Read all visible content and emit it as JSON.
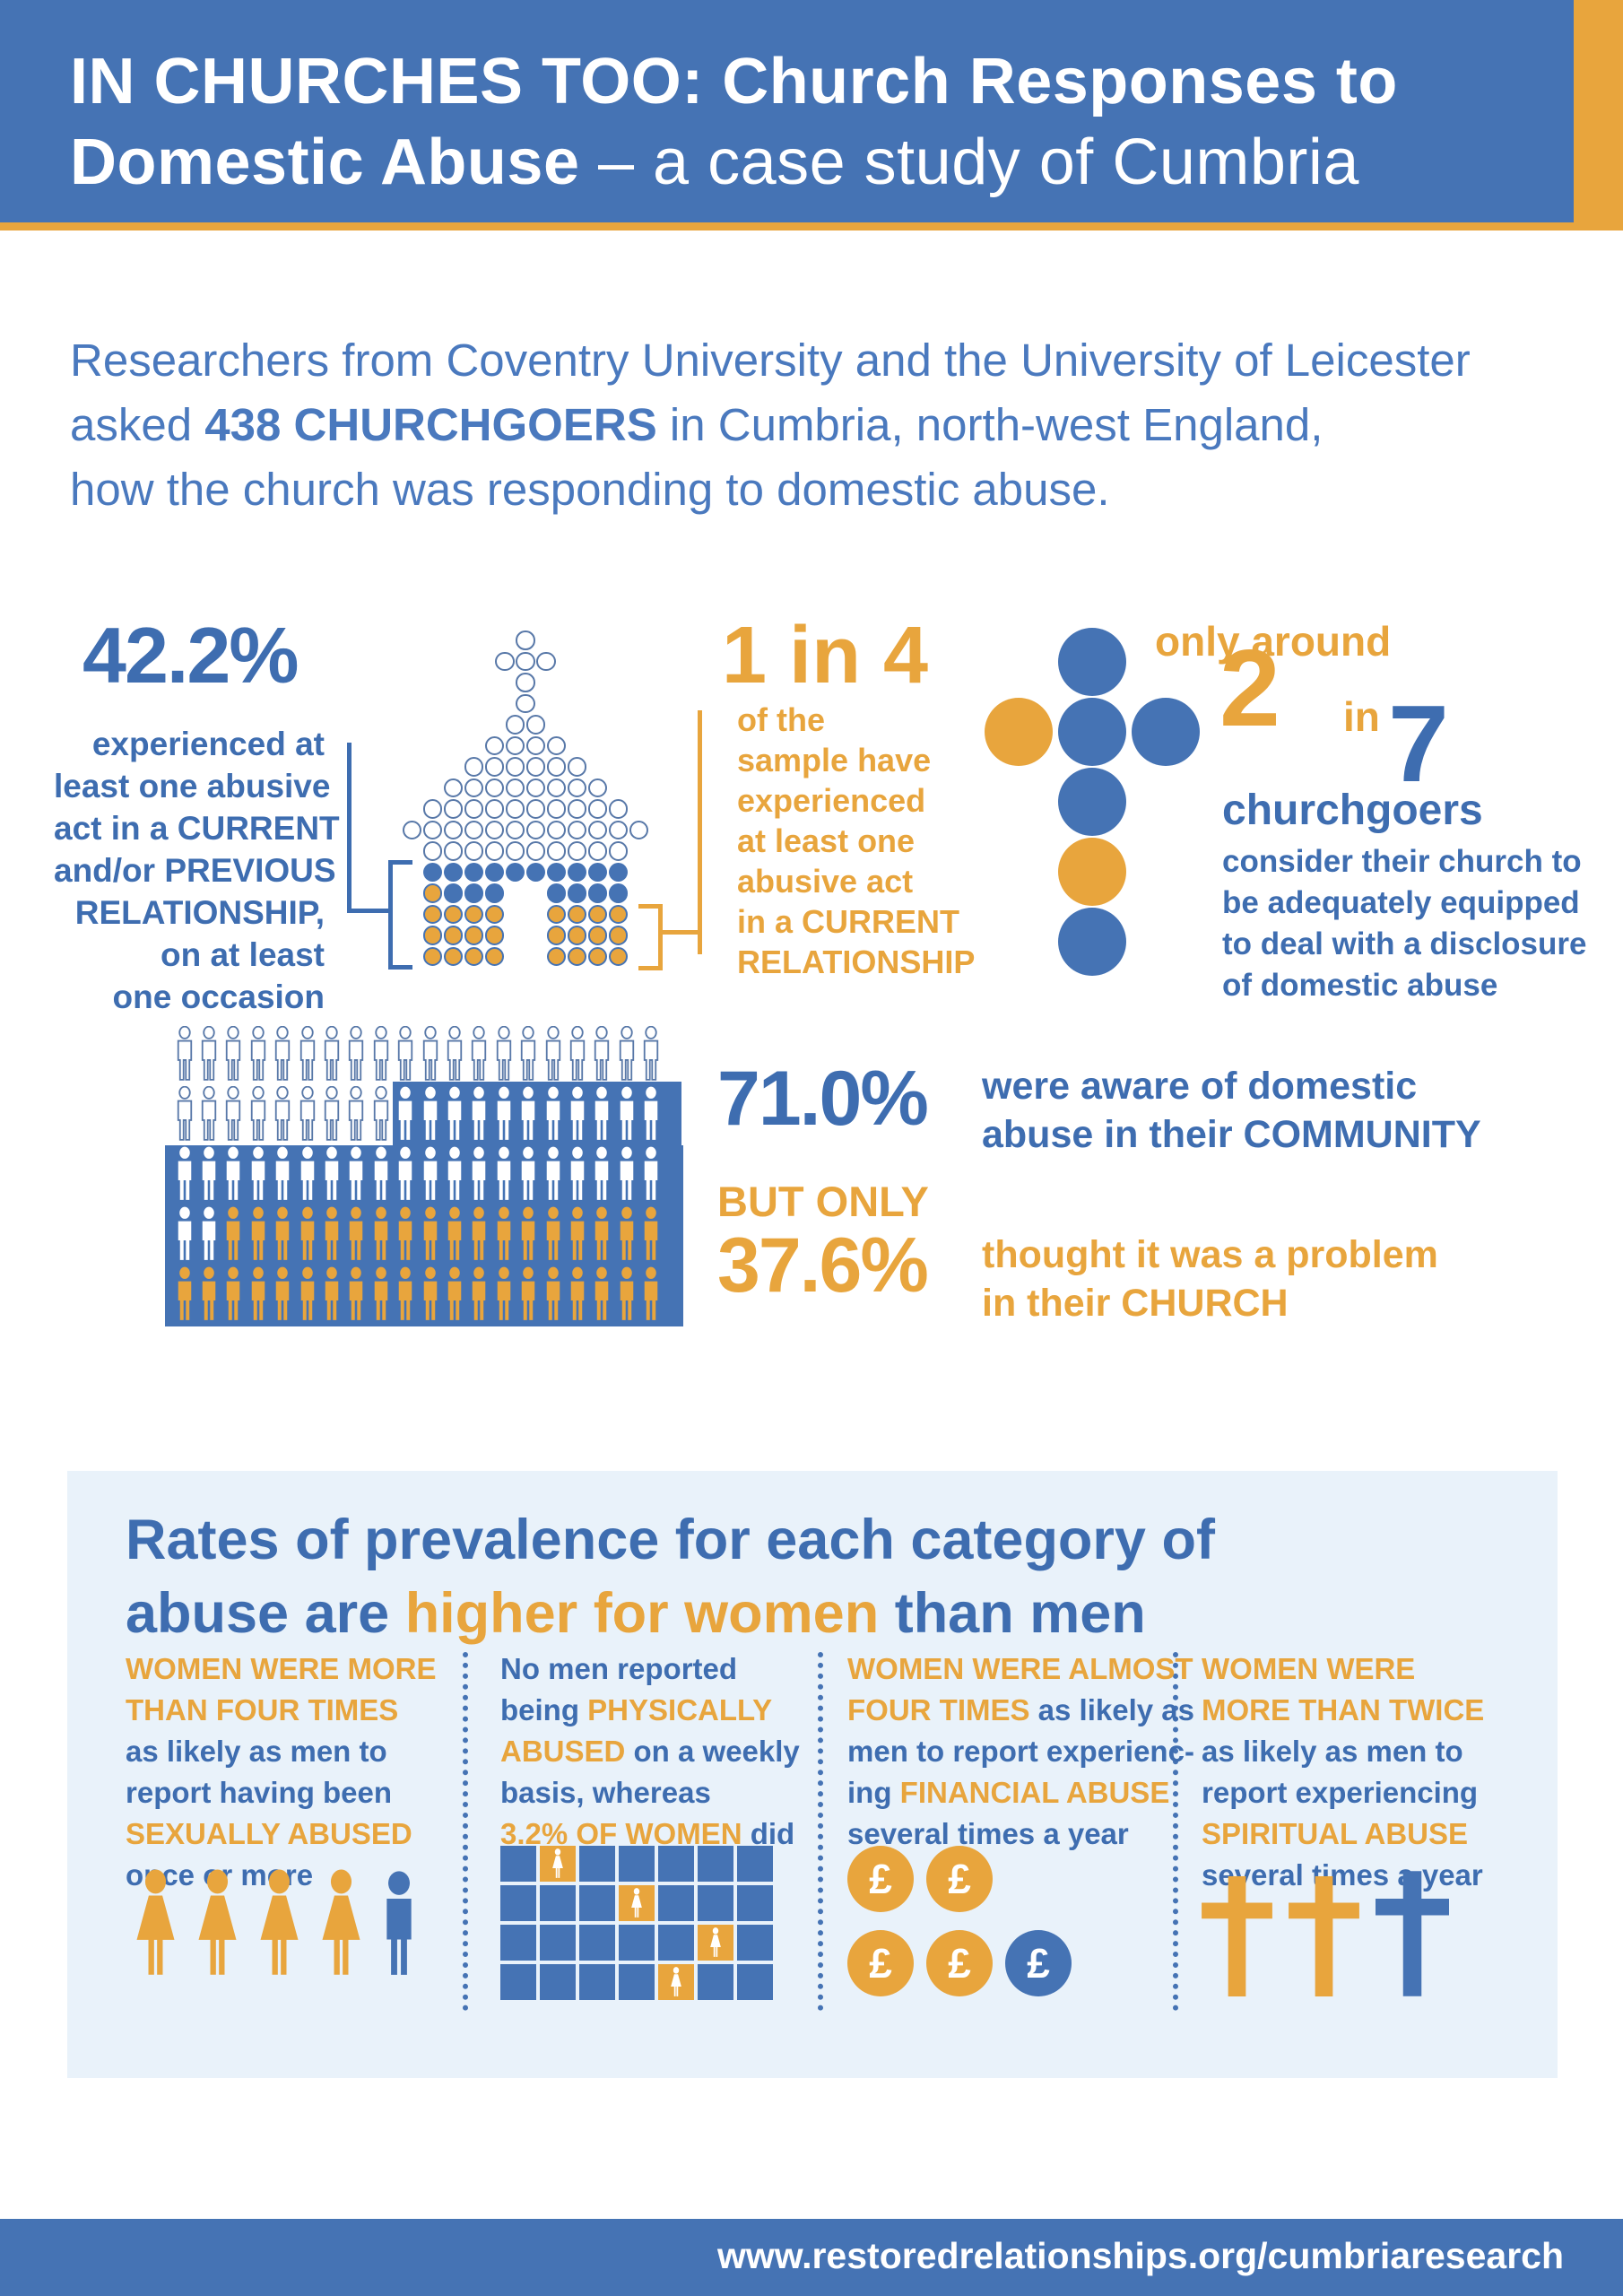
{
  "colors": {
    "blue": "#4573B4",
    "deep_blue": "#3E6DB0",
    "text_blue": "#4A79BE",
    "gold": "#E8A53D",
    "panel_bg": "#E9F2FA",
    "outline": "#5878A8",
    "white": "#FFFFFF"
  },
  "header": {
    "line1": [
      {
        "t": "IN CHURCHES TOO: Church Responses to",
        "c": "white",
        "b": true
      }
    ],
    "line2": [
      {
        "t": "Domestic Abuse",
        "c": "white",
        "b": true
      },
      {
        "t": " – a case study of Cumbria",
        "c": "white"
      }
    ]
  },
  "intro": {
    "lines": [
      [
        {
          "t": "Researchers from Coventry University and the University of Leicester"
        }
      ],
      [
        {
          "t": "asked "
        },
        {
          "t": "438 CHURCHGOERS",
          "b": true
        },
        {
          "t": " in Cumbria, north-west England,"
        }
      ],
      [
        {
          "t": "how the church was responding to domestic abuse."
        }
      ]
    ]
  },
  "stat42": {
    "value": "42.2%",
    "desc_lines": [
      "experienced at",
      "least one abusive",
      "act in a CURRENT",
      "and/or PREVIOUS",
      "RELATIONSHIP,",
      "on at least",
      "one occasion"
    ]
  },
  "church": {
    "rows": [
      "o",
      "ooo",
      "o",
      "o",
      "oo",
      "oooo",
      "oooooo",
      "oooooooo",
      "oooooooooo",
      "oooooooooooo",
      "oooooooooo",
      "BBBBBBBBBB",
      "GBBB..BBBB",
      "GGGG..GGGG",
      "GGGG..GGGG",
      "GGGG..GGGG"
    ]
  },
  "stat1in4": {
    "value": "1 in 4",
    "desc_lines": [
      "of the",
      "sample have",
      "experienced",
      "at least one",
      "abusive act",
      "in a CURRENT",
      "RELATIONSHIP"
    ]
  },
  "cross7": {
    "cells": [
      {
        "r": 0,
        "c": 1,
        "color": "blue"
      },
      {
        "r": 1,
        "c": 0,
        "color": "gold"
      },
      {
        "r": 1,
        "c": 1,
        "color": "blue"
      },
      {
        "r": 1,
        "c": 2,
        "color": "blue"
      },
      {
        "r": 2,
        "c": 1,
        "color": "blue"
      },
      {
        "r": 3,
        "c": 1,
        "color": "gold"
      },
      {
        "r": 4,
        "c": 1,
        "color": "blue"
      }
    ]
  },
  "stat2in7": {
    "prefix": "only around",
    "numerator": "2",
    "connector": "in",
    "denominator": "7",
    "label": "churchgoers",
    "desc_lines": [
      "consider their church to",
      "be adequately equipped",
      "to deal with a disclosure",
      "of domestic abuse"
    ]
  },
  "pictogram": {
    "rows": [
      "oooooooooooooooooooo",
      "ooooooooowwwwwwwwwww",
      "wwwwwwwwwwwwwwwwwwww",
      "wwgggggggggggggggggg",
      "gggggggggggggggggggg"
    ]
  },
  "stat71": {
    "value": "71.0%",
    "desc_lines": [
      "were aware of domestic",
      "abuse in their COMMUNITY"
    ],
    "qualifier": "BUT ONLY",
    "value2": "37.6%",
    "desc2_lines": [
      "thought it was a problem",
      "in their CHURCH"
    ]
  },
  "panel": {
    "heading_lines": [
      [
        {
          "t": "Rates of prevalence for each category of",
          "c": "blue"
        }
      ],
      [
        {
          "t": "abuse are ",
          "c": "blue"
        },
        {
          "t": "higher for women",
          "c": "gold"
        },
        {
          "t": " than men",
          "c": "blue"
        }
      ]
    ],
    "columns": [
      {
        "lines": [
          [
            {
              "t": "WOMEN WERE MORE",
              "c": "gold"
            }
          ],
          [
            {
              "t": "THAN FOUR TIMES",
              "c": "gold"
            }
          ],
          [
            {
              "t": "as likely as men to",
              "c": "blue"
            }
          ],
          [
            {
              "t": "report having been",
              "c": "blue"
            }
          ],
          [
            {
              "t": "SEXUALLY ABUSED",
              "c": "gold"
            }
          ],
          [
            {
              "t": "once or more",
              "c": "blue"
            }
          ]
        ],
        "icons": [
          "woman",
          "woman",
          "woman",
          "woman",
          "man"
        ]
      },
      {
        "lines": [
          [
            {
              "t": "No men reported",
              "c": "blue"
            }
          ],
          [
            {
              "t": "being ",
              "c": "blue"
            },
            {
              "t": "PHYSICALLY",
              "c": "gold"
            }
          ],
          [
            {
              "t": "ABUSED",
              "c": "gold"
            },
            {
              "t": " on a weekly",
              "c": "blue"
            }
          ],
          [
            {
              "t": "basis, whereas",
              "c": "blue"
            }
          ],
          [
            {
              "t": "3.2% OF WOMEN",
              "c": "gold"
            },
            {
              "t": " did",
              "c": "blue"
            }
          ]
        ],
        "grid_rows": [
          "bgbbbbb",
          "bbbgbbb",
          "bbbbbgb",
          "bbbbgbb"
        ]
      },
      {
        "lines": [
          [
            {
              "t": "WOMEN WERE ALMOST",
              "c": "gold"
            }
          ],
          [
            {
              "t": "FOUR TIMES",
              "c": "gold"
            },
            {
              "t": " as likely as",
              "c": "blue"
            }
          ],
          [
            {
              "t": "men to report experienc-",
              "c": "blue"
            }
          ],
          [
            {
              "t": "ing ",
              "c": "blue"
            },
            {
              "t": "FINANCIAL ABUSE",
              "c": "gold"
            }
          ],
          [
            {
              "t": "several times a year",
              "c": "blue"
            }
          ]
        ],
        "coin_rows": [
          [
            "gold",
            "gold"
          ],
          [
            "gold",
            "gold",
            "blue"
          ]
        ],
        "symbol": "£"
      },
      {
        "lines": [
          [
            {
              "t": "WOMEN WERE",
              "c": "gold"
            }
          ],
          [
            {
              "t": "MORE THAN TWICE",
              "c": "gold"
            }
          ],
          [
            {
              "t": "as likely as men to",
              "c": "blue"
            }
          ],
          [
            {
              "t": "report experiencing",
              "c": "blue"
            }
          ],
          [
            {
              "t": "SPIRITUAL ABUSE",
              "c": "gold"
            }
          ],
          [
            {
              "t": "several times a year",
              "c": "blue"
            }
          ]
        ],
        "crosses": [
          "gold",
          "gold",
          "blue"
        ]
      }
    ]
  },
  "footer": {
    "url": "www.restoredrelationships.org/cumbriaresearch"
  }
}
